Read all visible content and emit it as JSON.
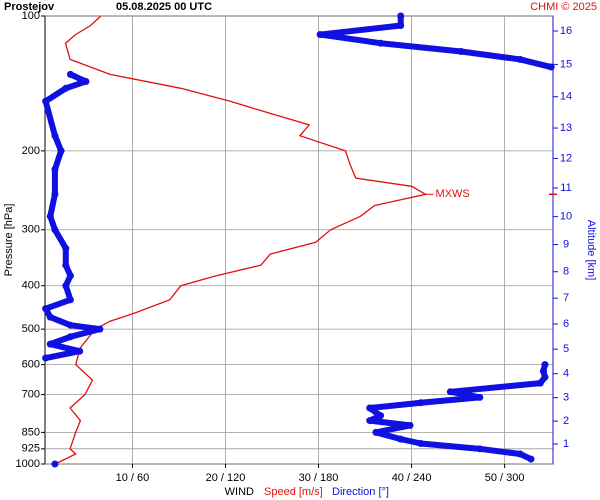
{
  "chart_data": {
    "type": "profile",
    "title": "Prostejov",
    "subtitle": "05.08.2025 00 UTC",
    "credit": "CHMI © 2025",
    "y_label": "Pressure [hPa]",
    "y2_label": "Altitude [km]",
    "x_label": "WIND",
    "ylim": [
      1000,
      100
    ],
    "log_y": true,
    "yticks": [
      100,
      200,
      300,
      400,
      500,
      600,
      700,
      850,
      925,
      1000
    ],
    "y2lim": [
      0.11,
      16.44
    ],
    "y2ticks": [
      1,
      2,
      3,
      4,
      5,
      6,
      7,
      8,
      9,
      10,
      11,
      12,
      13,
      14,
      15,
      16
    ],
    "xlim": [
      0.6,
      55.2
    ],
    "x2lim": [
      3.6,
      331.2
    ],
    "xticks": [
      {
        "value": 10,
        "label": "10 / 60"
      },
      {
        "value": 20,
        "label": "20 / 120"
      },
      {
        "value": 30,
        "label": "30 / 180"
      },
      {
        "value": 40,
        "label": "40 / 240"
      },
      {
        "value": 50,
        "label": "50 / 300"
      }
    ],
    "grid": true,
    "series": [
      {
        "name": "Speed [m/s]",
        "color": "#e01010",
        "axis": "x",
        "pressure": [
          1000,
          950,
          925,
          850,
          800,
          750,
          700,
          650,
          600,
          550,
          500,
          480,
          460,
          430,
          400,
          380,
          360,
          340,
          320,
          300,
          280,
          265,
          250,
          240,
          230,
          215,
          200,
          185,
          175,
          165,
          155,
          145,
          135,
          125,
          115,
          110,
          105,
          100
        ],
        "values": [
          1.7,
          3.9,
          3.3,
          3.9,
          4.4,
          3.3,
          4.9,
          5.7,
          3.9,
          4.4,
          6.0,
          7.6,
          10.3,
          14,
          15.2,
          19,
          23.8,
          24.8,
          29.7,
          31.3,
          34.5,
          36,
          41.5,
          40,
          34,
          33.4,
          32.9,
          28,
          29,
          24.8,
          20.5,
          15.2,
          7.6,
          3.3,
          2.8,
          3.9,
          5.5,
          6.6
        ]
      },
      {
        "name": "Direction [°]",
        "color": "#1010e0",
        "axis": "x2",
        "pressure": [
          1000,
          975,
          950,
          925,
          900,
          880,
          850,
          820,
          800,
          780,
          750,
          730,
          710,
          690,
          660,
          640,
          620,
          600,
          580,
          560,
          540,
          520,
          500,
          490,
          470,
          450,
          430,
          400,
          380,
          360,
          330,
          300,
          280,
          250,
          220,
          200,
          185,
          155,
          145,
          140,
          135,
          130,
          125,
          120,
          115,
          110,
          105,
          100
        ],
        "values": [
          10,
          317,
          310,
          284,
          246,
          233,
          217,
          239,
          213,
          220,
          213,
          246,
          284,
          265,
          323,
          326,
          325,
          326,
          4,
          26,
          7,
          20,
          39,
          20,
          7,
          4,
          20,
          17,
          20,
          17,
          17,
          10,
          7,
          10,
          10,
          14,
          10,
          4,
          17,
          30,
          20,
          330,
          310,
          272,
          220,
          181,
          233,
          233
        ]
      }
    ],
    "annotations": [
      {
        "text": "MXWS",
        "pressure": 250,
        "speed": 41.5
      }
    ]
  }
}
